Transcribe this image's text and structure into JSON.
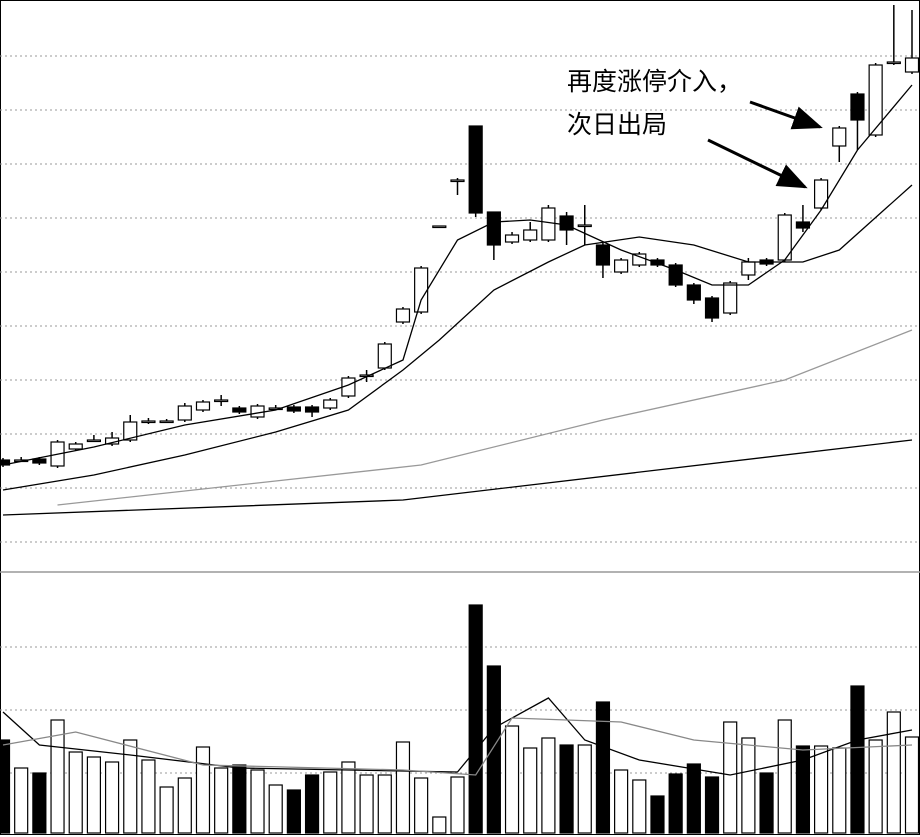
{
  "chart_data": [
    {
      "type": "candlestick",
      "annotation": [
        "再度涨停介入，",
        "次日出局"
      ],
      "categories": [
        null,
        null,
        null,
        null,
        null,
        null,
        null,
        null,
        null,
        null,
        null,
        null,
        null,
        null,
        null,
        null,
        null,
        null,
        null,
        null,
        null,
        null,
        null,
        null,
        null,
        null,
        null,
        null,
        null,
        null,
        null,
        null,
        null,
        null,
        null,
        null,
        null,
        null,
        null,
        null,
        null,
        null,
        null,
        null,
        null,
        null,
        null,
        null,
        null,
        null,
        null
      ],
      "open": [
        110,
        110,
        111,
        104,
        121,
        130,
        126,
        130,
        149,
        149,
        150,
        160,
        170,
        162,
        153,
        162,
        163,
        163,
        162,
        174,
        195,
        202,
        248,
        258,
        344,
        390,
        444,
        358,
        328,
        330,
        330,
        354,
        345,
        325,
        298,
        305,
        310,
        305,
        285,
        272,
        257,
        295,
        310,
        310,
        348,
        362,
        424,
        476,
        435,
        508,
        498
      ],
      "high": [
        112,
        113,
        113,
        130,
        128,
        135,
        138,
        155,
        152,
        151,
        167,
        170,
        175,
        164,
        166,
        165,
        165,
        165,
        172,
        194,
        200,
        228,
        263,
        304,
        344,
        392,
        444,
        358,
        338,
        348,
        365,
        358,
        365,
        327,
        312,
        318,
        312,
        307,
        287,
        274,
        289,
        312,
        312,
        357,
        365,
        392,
        444,
        478,
        507,
        565,
        560
      ],
      "low": [
        103,
        108,
        105,
        102,
        119,
        128,
        124,
        128,
        146,
        147,
        148,
        158,
        164,
        156,
        151,
        160,
        157,
        153,
        160,
        172,
        188,
        200,
        246,
        256,
        344,
        375,
        353,
        310,
        326,
        328,
        328,
        325,
        325,
        292,
        296,
        303,
        303,
        283,
        266,
        248,
        255,
        290,
        304,
        308,
        338,
        360,
        408,
        420,
        433,
        505,
        496
      ],
      "close": [
        105,
        110,
        107,
        128,
        126,
        130,
        132,
        148,
        149,
        149,
        164,
        168,
        170,
        158,
        164,
        162,
        159,
        158,
        170,
        192,
        195,
        226,
        261,
        302,
        344,
        390,
        357,
        325,
        335,
        340,
        362,
        340,
        345,
        305,
        310,
        316,
        305,
        285,
        270,
        252,
        287,
        308,
        306,
        355,
        342,
        390,
        442,
        450,
        505,
        508,
        512
      ],
      "up_color": "#ffffff",
      "down_color": "#000000",
      "ylim": [
        0,
        570
      ],
      "ygrid": [
        514,
        460,
        406,
        352,
        298,
        244,
        190,
        136,
        82,
        28
      ],
      "lines": [
        {
          "color": "#000000",
          "x": [
            0,
            5,
            10,
            15,
            19,
            22,
            23,
            25,
            27,
            29,
            31,
            34,
            37,
            39,
            41,
            43,
            45,
            47,
            50
          ],
          "values": [
            105,
            123,
            145,
            160,
            185,
            210,
            270,
            330,
            348,
            350,
            345,
            320,
            300,
            285,
            285,
            310,
            360,
            420,
            485
          ]
        },
        {
          "color": "#000000",
          "x": [
            0,
            5,
            10,
            15,
            19,
            22,
            24,
            27,
            30,
            32,
            35,
            38,
            41,
            44,
            46,
            50
          ],
          "values": [
            80,
            95,
            115,
            138,
            160,
            200,
            230,
            280,
            308,
            325,
            333,
            325,
            308,
            308,
            320,
            385
          ]
        },
        {
          "color": "#999999",
          "x": [
            3,
            23,
            33,
            43,
            50
          ],
          "values": [
            65,
            105,
            150,
            190,
            240
          ]
        },
        {
          "color": "#000000",
          "x": [
            0,
            22,
            50
          ],
          "values": [
            55,
            70,
            130
          ]
        }
      ]
    },
    {
      "type": "bar",
      "values": [
        93,
        65,
        60,
        113,
        81,
        76,
        71,
        93,
        73,
        46,
        55,
        86,
        65,
        68,
        63,
        48,
        43,
        58,
        61,
        71,
        58,
        58,
        91,
        55,
        16,
        56,
        228,
        167,
        107,
        85,
        95,
        88,
        88,
        131,
        63,
        53,
        37,
        59,
        69,
        56,
        111,
        95,
        60,
        113,
        87,
        87,
        85,
        147,
        93,
        121,
        96
      ],
      "ylim": [
        0,
        261
      ],
      "ygrid": [
        186,
        123,
        60
      ],
      "lines": [
        {
          "color": "#000000",
          "x": [
            0,
            2,
            7,
            13,
            25,
            27,
            30,
            32,
            35,
            40,
            44,
            47,
            50
          ],
          "values": [
            121,
            88,
            78,
            65,
            61,
            105,
            135,
            93,
            73,
            58,
            73,
            93,
            103
          ]
        },
        {
          "color": "#888888",
          "x": [
            0,
            4,
            11,
            22,
            26,
            28,
            34,
            38,
            44,
            50
          ],
          "values": [
            88,
            101,
            68,
            63,
            58,
            115,
            111,
            93,
            83,
            88
          ]
        }
      ]
    }
  ]
}
